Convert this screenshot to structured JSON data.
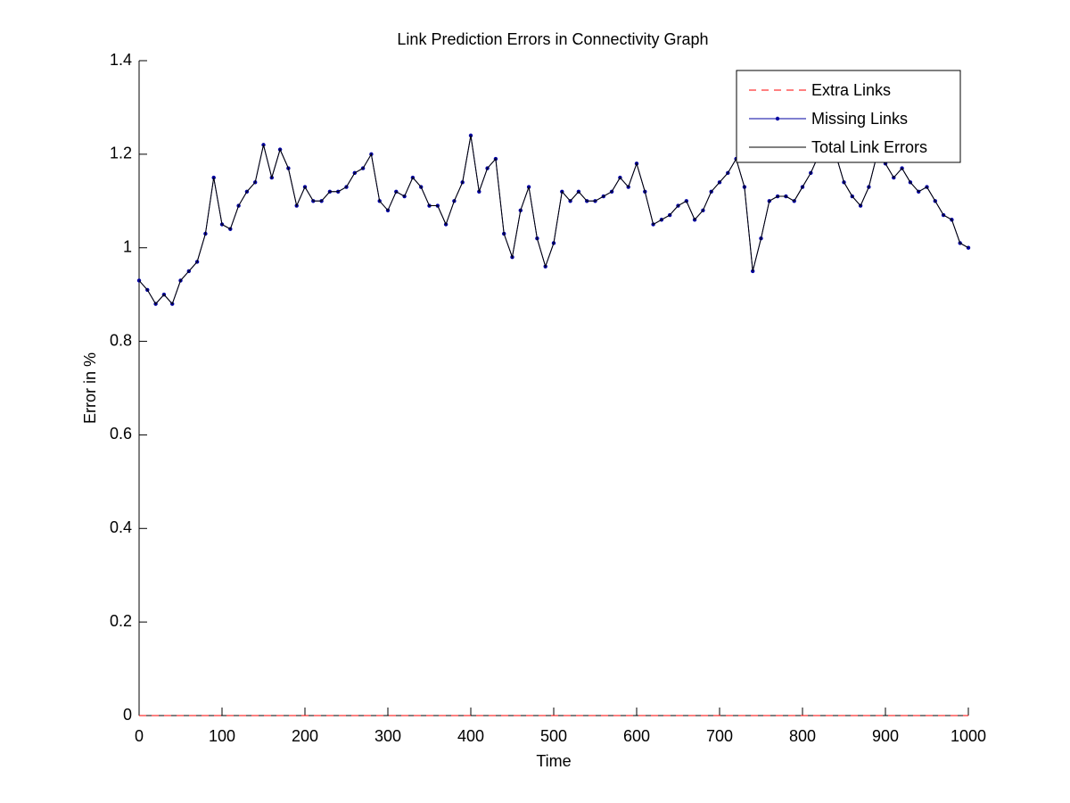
{
  "chart_data": {
    "type": "line",
    "title": "Link Prediction Errors in Connectivity Graph",
    "xlabel": "Time",
    "ylabel": "Error in %",
    "x": [
      0,
      10,
      20,
      30,
      40,
      50,
      60,
      70,
      80,
      90,
      100,
      110,
      120,
      130,
      140,
      150,
      160,
      170,
      180,
      190,
      200,
      210,
      220,
      230,
      240,
      250,
      260,
      270,
      280,
      290,
      300,
      310,
      320,
      330,
      340,
      350,
      360,
      370,
      380,
      390,
      400,
      410,
      420,
      430,
      440,
      450,
      460,
      470,
      480,
      490,
      500,
      510,
      520,
      530,
      540,
      550,
      560,
      570,
      580,
      590,
      600,
      610,
      620,
      630,
      640,
      650,
      660,
      670,
      680,
      690,
      700,
      710,
      720,
      730,
      740,
      750,
      760,
      770,
      780,
      790,
      800,
      810,
      820,
      830,
      840,
      850,
      860,
      870,
      880,
      890,
      900,
      910,
      920,
      930,
      940,
      950,
      960,
      970,
      980,
      990,
      1000
    ],
    "series": [
      {
        "name": "Extra Links",
        "color": "#ff0000",
        "linestyle": "dashed",
        "marker": "none",
        "values": [
          0,
          0,
          0,
          0,
          0,
          0,
          0,
          0,
          0,
          0,
          0,
          0,
          0,
          0,
          0,
          0,
          0,
          0,
          0,
          0,
          0,
          0,
          0,
          0,
          0,
          0,
          0,
          0,
          0,
          0,
          0,
          0,
          0,
          0,
          0,
          0,
          0,
          0,
          0,
          0,
          0,
          0,
          0,
          0,
          0,
          0,
          0,
          0,
          0,
          0,
          0,
          0,
          0,
          0,
          0,
          0,
          0,
          0,
          0,
          0,
          0,
          0,
          0,
          0,
          0,
          0,
          0,
          0,
          0,
          0,
          0,
          0,
          0,
          0,
          0,
          0,
          0,
          0,
          0,
          0,
          0,
          0,
          0,
          0,
          0,
          0,
          0,
          0,
          0,
          0,
          0,
          0,
          0,
          0,
          0,
          0,
          0,
          0,
          0,
          0,
          0
        ]
      },
      {
        "name": "Missing Links",
        "color": "#0000a0",
        "linestyle": "solid",
        "marker": "dot",
        "values": [
          0.93,
          0.91,
          0.88,
          0.9,
          0.88,
          0.93,
          0.95,
          0.97,
          1.03,
          1.15,
          1.05,
          1.04,
          1.09,
          1.12,
          1.14,
          1.22,
          1.15,
          1.21,
          1.17,
          1.09,
          1.13,
          1.1,
          1.1,
          1.12,
          1.12,
          1.13,
          1.16,
          1.17,
          1.2,
          1.1,
          1.08,
          1.12,
          1.11,
          1.15,
          1.13,
          1.09,
          1.09,
          1.05,
          1.1,
          1.14,
          1.24,
          1.12,
          1.17,
          1.19,
          1.03,
          0.98,
          1.08,
          1.13,
          1.02,
          0.96,
          1.01,
          1.12,
          1.1,
          1.12,
          1.1,
          1.1,
          1.11,
          1.12,
          1.15,
          1.13,
          1.18,
          1.12,
          1.05,
          1.06,
          1.07,
          1.09,
          1.1,
          1.06,
          1.08,
          1.12,
          1.14,
          1.16,
          1.19,
          1.13,
          0.95,
          1.02,
          1.1,
          1.11,
          1.11,
          1.1,
          1.13,
          1.16,
          1.2,
          1.22,
          1.2,
          1.14,
          1.11,
          1.09,
          1.13,
          1.2,
          1.18,
          1.15,
          1.17,
          1.14,
          1.12,
          1.13,
          1.1,
          1.07,
          1.06,
          1.01,
          1.0
        ]
      },
      {
        "name": "Total Link Errors",
        "color": "#000000",
        "linestyle": "solid",
        "marker": "none",
        "values": [
          0.93,
          0.91,
          0.88,
          0.9,
          0.88,
          0.93,
          0.95,
          0.97,
          1.03,
          1.15,
          1.05,
          1.04,
          1.09,
          1.12,
          1.14,
          1.22,
          1.15,
          1.21,
          1.17,
          1.09,
          1.13,
          1.1,
          1.1,
          1.12,
          1.12,
          1.13,
          1.16,
          1.17,
          1.2,
          1.1,
          1.08,
          1.12,
          1.11,
          1.15,
          1.13,
          1.09,
          1.09,
          1.05,
          1.1,
          1.14,
          1.24,
          1.12,
          1.17,
          1.19,
          1.03,
          0.98,
          1.08,
          1.13,
          1.02,
          0.96,
          1.01,
          1.12,
          1.1,
          1.12,
          1.1,
          1.1,
          1.11,
          1.12,
          1.15,
          1.13,
          1.18,
          1.12,
          1.05,
          1.06,
          1.07,
          1.09,
          1.1,
          1.06,
          1.08,
          1.12,
          1.14,
          1.16,
          1.19,
          1.13,
          0.95,
          1.02,
          1.1,
          1.11,
          1.11,
          1.1,
          1.13,
          1.16,
          1.2,
          1.22,
          1.2,
          1.14,
          1.11,
          1.09,
          1.13,
          1.2,
          1.18,
          1.15,
          1.17,
          1.14,
          1.12,
          1.13,
          1.1,
          1.07,
          1.06,
          1.01,
          1.0
        ]
      }
    ],
    "xlim": [
      0,
      1000
    ],
    "xticks": [
      0,
      100,
      200,
      300,
      400,
      500,
      600,
      700,
      800,
      900,
      1000
    ],
    "ylim": [
      0,
      1.4
    ],
    "yticks": [
      0,
      0.2,
      0.4,
      0.6,
      0.8,
      1,
      1.2,
      1.4
    ],
    "grid": false,
    "legend": "top-right"
  }
}
